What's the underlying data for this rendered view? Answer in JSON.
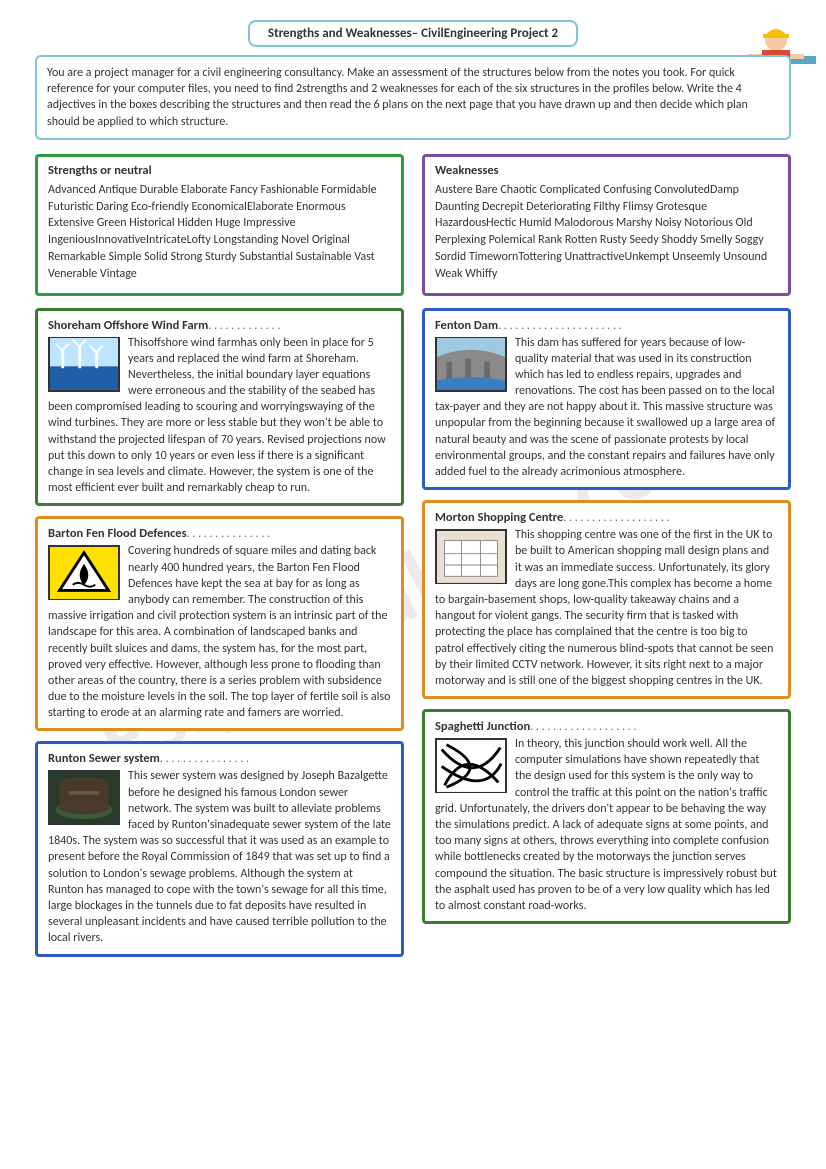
{
  "title": "Strengths and Weaknesses– CivilEngineering Project 2",
  "watermark": "Eslprintables.com",
  "intro": "You are a project manager for a civil engineering consultancy. Make an assessment of the structures below from the notes you took. For quick reference for your computer files, you need to find 2strengths and 2 weaknesses for each of the six structures in the profiles below. Write the 4 adjectives in the boxes describing the structures and then read the 6 plans on the next page that you have drawn up and then decide which plan should be applied to which structure.",
  "strengths": {
    "heading": "Strengths or neutral",
    "words": "Advanced   Antique  Durable     Elaborate   Fancy   Fashionable  Formidable   Futuristic    Daring   Eco-friendly   EconomicalElaborate Enormous    Extensive   Green Historical Hidden     Huge   Impressive   IngeniousInnovativeIntricateLofty    Longstanding  Novel   Original Remarkable    Simple Solid  Strong  Sturdy Substantial    Sustainable  Vast  Venerable  Vintage",
    "border": "#2e9b3e"
  },
  "weaknesses": {
    "heading": "Weaknesses",
    "words": "Austere    Bare Chaotic    Complicated  Confusing  ConvolutedDamp   Daunting Decrepit Deteriorating  Filthy   Flimsy  Grotesque   HazardousHectic     Humid   Malodorous  Marshy      Noisy  Notorious   Old   Perplexing  Polemical Rank Rotten   Rusty Seedy  Shoddy  Smelly Soggy    Sordid  TimewornTottering  UnattractiveUnkempt   Unseemly   Unsound  Weak  Whiffy",
    "border": "#7a4fa3"
  },
  "profiles": {
    "left": [
      {
        "title": "Shoreham Offshore Wind Farm",
        "img": "wind",
        "border": "#3a7d2f",
        "dots": ". . . . . . . . . . . . .",
        "text": "Thisoffshore wind farmhas only been in place for 5 years and replaced the wind farm at Shoreham. Nevertheless, the initial boundary layer equations were erroneous and the stability of the seabed has been compromised leading to scouring and worryingswaying of the wind turbines. They are more or less stable but they won't be able to withstand the projected lifespan of 70 years. Revised projections now put this down to only 10 years or even less if there is a significant change in sea levels and climate. However, the system is one of the most efficient ever built and remarkably cheap to run."
      },
      {
        "title": "Barton Fen Flood Defences",
        "img": "flood",
        "border": "#e38b1e",
        "dots": ". . . . . . . . . . . . . . .",
        "text": "Covering hundreds of square miles and dating back nearly 400 hundred years, the Barton Fen Flood Defences have kept the sea at bay for as long as anybody can remember. The construction of this massive irrigation and civil protection system is an intrinsic part of the landscape for this area. A combination of landscaped banks and recently built sluices and dams, the system has, for the most part, proved very effective. However, although less prone to flooding than other areas of the country, there is a series problem with subsidence due to the moisture levels in the soil. The top layer of fertile soil is also starting to erode at an alarming rate and famers are worried."
      },
      {
        "title": "Runton Sewer system",
        "img": "sewer",
        "border": "#2a5fbf",
        "dots": ". . . . . . . . . . . . . . . .",
        "text": "This sewer system was designed by Joseph Bazalgette before he designed his famous London sewer network. The system was built to alleviate problems faced by Runton'sinadequate sewer system of the late 1840s. The system was so successful that it was used as an example to present before the Royal Commission of 1849 that was set up to find a solution to London's sewage problems. Although the system at Runton has managed to cope with the town's sewage for all this time, large blockages in the tunnels due to fat deposits have resulted in several unpleasant incidents and have caused terrible pollution to the local rivers."
      }
    ],
    "right": [
      {
        "title": "Fenton Dam",
        "img": "dam",
        "border": "#2a5fbf",
        "dots": ". . . . . . . . . . . . . . . . . . . . . .",
        "text": "This dam has suffered for years because of low- quality material that was used in its construction which has led to endless repairs, upgrades and renovations. The cost has been passed on to the local tax-payer and they are not happy about it. This massive structure was unpopular from the beginning because it swallowed up a large area of natural beauty and was the scene of passionate protests by local environmental groups, and the constant repairs and failures have only added fuel to the already acrimonious atmosphere."
      },
      {
        "title": "Morton Shopping Centre",
        "img": "mall",
        "border": "#e38b1e",
        "dots": ". . . . . . . . . . . . . . . . . . .",
        "text": "This shopping centre was one of the first in the UK to be built to American shopping mall design plans and it was an immediate success. Unfortunately, its glory days are long gone.This complex has become a home to bargain-basement shops, low-quality takeaway chains and a hangout for violent gangs. The security firm that is tasked with protecting the place has complained that the centre is too big to patrol effectively citing the numerous blind-spots that cannot be seen by their limited CCTV network. However, it sits right next to a major motorway and is still one of the biggest shopping centres in the UK."
      },
      {
        "title": "Spaghetti Junction",
        "img": "junction",
        "border": "#3a7d2f",
        "dots": ". . . . . . . . . . . . . . . . . . .",
        "text": "In theory, this junction should work well. All the computer simulations have shown repeatedly that the design used for this system is the only way to control the traffic at this point on the nation's traffic grid. Unfortunately, the drivers don't appear to be behaving the way the simulations predict. A lack of adequate signs at some points, and too many signs at others, throws everything into complete confusion while bottlenecks created by the motorways the junction serves compound the situation. The basic structure is impressively robust but the asphalt used has proven to be of a very low quality which has led to almost constant road-works."
      }
    ]
  }
}
